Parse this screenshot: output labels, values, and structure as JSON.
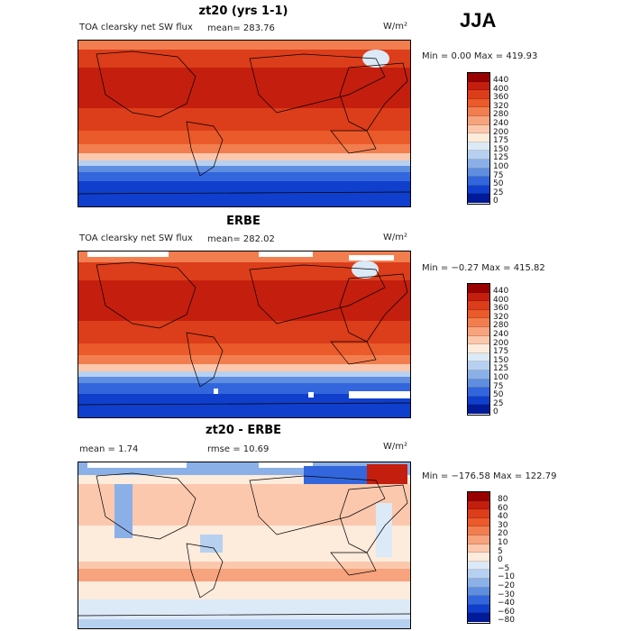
{
  "season": "JJA",
  "panels": [
    {
      "title": "zt20 (yrs 1-1)",
      "field_label": "TOA clearsky net SW flux",
      "stat": "mean=  283.76",
      "units": "W/m²",
      "minmax": "Min =    0.00 Max = 419.93",
      "levels": [
        "440",
        "400",
        "360",
        "320",
        "280",
        "240",
        "200",
        "175",
        "150",
        "125",
        "100",
        "75",
        "50",
        "25",
        "0"
      ],
      "colors": [
        "#990000",
        "#c41e0e",
        "#dc3d1a",
        "#ea5a2a",
        "#f27e4f",
        "#f7a37d",
        "#fbc8ad",
        "#fdebdc",
        "#dce9f7",
        "#b7d0f0",
        "#8bb0e8",
        "#5f8ee0",
        "#3366dd",
        "#0f3fcc",
        "#001a99"
      ]
    },
    {
      "title": "ERBE",
      "field_label": "TOA clearsky net SW flux",
      "stat": "mean= 282.02",
      "units": "W/m²",
      "minmax": "Min =  −0.27 Max = 415.82",
      "levels": [
        "440",
        "400",
        "360",
        "320",
        "280",
        "240",
        "200",
        "175",
        "150",
        "125",
        "100",
        "75",
        "50",
        "25",
        "0"
      ],
      "colors": [
        "#990000",
        "#c41e0e",
        "#dc3d1a",
        "#ea5a2a",
        "#f27e4f",
        "#f7a37d",
        "#fbc8ad",
        "#fdebdc",
        "#dce9f7",
        "#b7d0f0",
        "#8bb0e8",
        "#5f8ee0",
        "#3366dd",
        "#0f3fcc",
        "#001a99"
      ]
    },
    {
      "title": "zt20 - ERBE",
      "stat": "mean =    1.74",
      "rmse": "rmse =   10.69",
      "units": "W/m²",
      "minmax": "Min = −176.58 Max = 122.79",
      "levels": [
        "80",
        "60",
        "40",
        "30",
        "20",
        "10",
        "5",
        "0",
        "−5",
        "−10",
        "−20",
        "−30",
        "−40",
        "−60",
        "−80"
      ],
      "colors": [
        "#990000",
        "#c41e0e",
        "#dc3d1a",
        "#ea5a2a",
        "#f27e4f",
        "#f7a37d",
        "#fbc8ad",
        "#fdebdc",
        "#dce9f7",
        "#b7d0f0",
        "#8bb0e8",
        "#5f8ee0",
        "#3366dd",
        "#0f3fcc",
        "#001a99"
      ]
    }
  ]
}
